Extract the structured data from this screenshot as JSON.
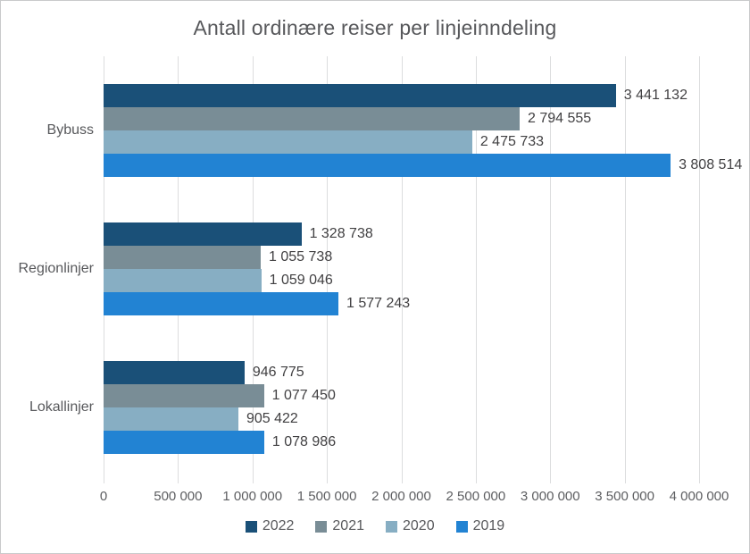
{
  "chart_data": {
    "type": "bar",
    "orientation": "horizontal",
    "title": "Antall ordinære reiser per linjeinndeling",
    "categories": [
      "Bybuss",
      "Regionlinjer",
      "Lokallinjer"
    ],
    "series": [
      {
        "name": "2022",
        "color": "#1a5078",
        "values": [
          3441132,
          1328738,
          946775
        ]
      },
      {
        "name": "2021",
        "color": "#798d96",
        "values": [
          2794555,
          1055738,
          1077450
        ]
      },
      {
        "name": "2020",
        "color": "#87aec3",
        "values": [
          2475733,
          1059046,
          905422
        ]
      },
      {
        "name": "2019",
        "color": "#2283d3",
        "values": [
          3808514,
          1577243,
          1078986
        ]
      }
    ],
    "value_labels": [
      [
        "3 441 132",
        "1 328 738",
        "946 775"
      ],
      [
        "2 794 555",
        "1 055 738",
        "1 077 450"
      ],
      [
        "2 475 733",
        "1 059 046",
        "905 422"
      ],
      [
        "3 808 514",
        "1 577 243",
        "1 078 986"
      ]
    ],
    "xlabel": "",
    "ylabel": "",
    "xlim": [
      0,
      4000000
    ],
    "x_ticks": [
      0,
      500000,
      1000000,
      1500000,
      2000000,
      2500000,
      3000000,
      3500000,
      4000000
    ],
    "x_tick_labels": [
      "0",
      "500 000",
      "1 000 000",
      "1 500 000",
      "2 000 000",
      "2 500 000",
      "3 000 000",
      "3 500 000",
      "4 000 000"
    ],
    "grid": true,
    "legend_position": "bottom",
    "legend_entries": [
      "2022",
      "2021",
      "2020",
      "2019"
    ]
  },
  "style": {
    "grid_color": "#dcddde",
    "title_color": "#57585b",
    "label_color": "#414042",
    "axis_text_color": "#5d5e61",
    "background": "#ffffff",
    "border_color": "#c9cacb"
  }
}
